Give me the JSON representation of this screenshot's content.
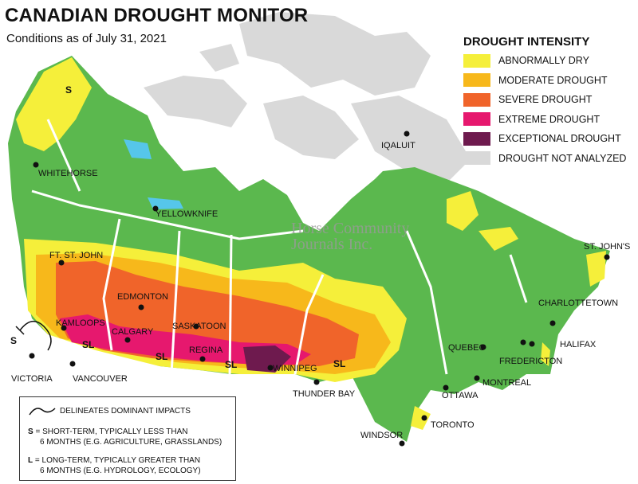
{
  "title": "CANADIAN DROUGHT MONITOR",
  "subtitle": "Conditions as of July 31, 2021",
  "watermark": [
    "Horse Community",
    "Journals Inc."
  ],
  "legend": {
    "title": "DROUGHT INTENSITY",
    "items": [
      {
        "label": "ABNORMALLY DRY",
        "color": "#f5ef3a"
      },
      {
        "label": "MODERATE DROUGHT",
        "color": "#f7b81b"
      },
      {
        "label": "SEVERE DROUGHT",
        "color": "#f0642a"
      },
      {
        "label": "EXTREME DROUGHT",
        "color": "#e6186e"
      },
      {
        "label": "EXCEPTIONAL DROUGHT",
        "color": "#6e1a4e"
      },
      {
        "label": "DROUGHT NOT ANALYZED",
        "color": "#d9d9d9"
      }
    ]
  },
  "colors": {
    "no_drought": "#5bb84e",
    "water": "#56c6ea",
    "not_analyzed": "#d9d9d9"
  },
  "cities": {
    "whitehorse": "WHITEHORSE",
    "yellowknife": "YELLOWKNIFE",
    "iqaluit": "IQALUIT",
    "ft_st_john": "FT. ST. JOHN",
    "edmonton": "EDMONTON",
    "kamloops": "KAMLOOPS",
    "calgary": "CALGARY",
    "saskatoon": "SASKATOON",
    "regina": "REGINA",
    "winnipeg": "WINNIPEG",
    "thunder_bay": "THUNDER BAY",
    "victoria": "VICTORIA",
    "vancouver": "VANCOUVER",
    "windsor": "WINDSOR",
    "toronto": "TORONTO",
    "ottawa": "OTTAWA",
    "montreal": "MONTREAL",
    "quebec": "QUEBEC",
    "fredericton": "FREDERICTON",
    "charlottetown": "CHARLOTTETOWN",
    "halifax": "HALIFAX",
    "st_johns": "ST. JOHN'S"
  },
  "impact_labels": {
    "short": "S",
    "long": "SL"
  },
  "key": {
    "delineates": "DELINEATES DOMINANT IMPACTS",
    "s_letter": "S",
    "s_text_1": "= SHORT-TERM, TYPICALLY LESS THAN",
    "s_text_2": "6 MONTHS (E.G. AGRICULTURE, GRASSLANDS)",
    "l_letter": "L",
    "l_text_1": "= LONG-TERM, TYPICALLY GREATER THAN",
    "l_text_2": "6 MONTHS (E.G. HYDROLOGY, ECOLOGY)"
  }
}
